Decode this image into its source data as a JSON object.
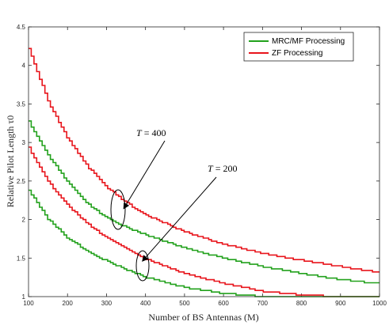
{
  "chart_data": {
    "type": "line",
    "title": "",
    "xlabel": "Number of BS Antennas (M)",
    "ylabel": "Relative Pilot Length τ0",
    "xlim": [
      100,
      1000
    ],
    "ylim": [
      1,
      4.5
    ],
    "xticks": [
      100,
      200,
      300,
      400,
      500,
      600,
      700,
      800,
      900,
      1000
    ],
    "yticks": [
      1,
      1.5,
      2,
      2.5,
      3,
      3.5,
      4,
      4.5
    ],
    "legend_position": "top-right",
    "line_style": "step",
    "legend": [
      {
        "label": "MRC/MF Processing",
        "color": "#22a11c"
      },
      {
        "label": "ZF Processing",
        "color": "#e8141b"
      }
    ],
    "series": [
      {
        "group": "T = 400",
        "legend_index": 1,
        "color": "#e8141b",
        "x": [
          100,
          150,
          200,
          250,
          300,
          350,
          400,
          500,
          600,
          700,
          800,
          900,
          1000
        ],
        "y": [
          4.22,
          3.52,
          3.05,
          2.69,
          2.42,
          2.22,
          2.06,
          1.84,
          1.68,
          1.56,
          1.47,
          1.39,
          1.31
        ]
      },
      {
        "group": "T = 400",
        "legend_index": 0,
        "color": "#22a11c",
        "x": [
          100,
          150,
          200,
          250,
          300,
          350,
          400,
          500,
          600,
          700,
          800,
          900,
          1000
        ],
        "y": [
          3.27,
          2.83,
          2.48,
          2.21,
          2.02,
          1.9,
          1.8,
          1.63,
          1.5,
          1.39,
          1.3,
          1.22,
          1.17
        ]
      },
      {
        "group": "T = 200",
        "legend_index": 1,
        "color": "#e8141b",
        "x": [
          100,
          150,
          200,
          250,
          300,
          350,
          400,
          500,
          600,
          700,
          800,
          900,
          1000
        ],
        "y": [
          2.93,
          2.49,
          2.18,
          1.95,
          1.76,
          1.62,
          1.49,
          1.3,
          1.17,
          1.07,
          1.02,
          1.0,
          1.0
        ]
      },
      {
        "group": "T = 200",
        "legend_index": 0,
        "color": "#22a11c",
        "x": [
          100,
          150,
          200,
          250,
          300,
          350,
          400,
          500,
          600,
          700,
          800,
          900,
          1000
        ],
        "y": [
          2.38,
          2.0,
          1.76,
          1.59,
          1.46,
          1.35,
          1.25,
          1.12,
          1.04,
          1.0,
          1.0,
          1.0,
          1.0
        ]
      }
    ],
    "annotations": [
      {
        "var": "T",
        "eq": " = 400",
        "target": [
          340,
          2.1
        ]
      },
      {
        "var": "T",
        "eq": " = 200",
        "target": [
          388,
          1.42
        ]
      }
    ]
  }
}
